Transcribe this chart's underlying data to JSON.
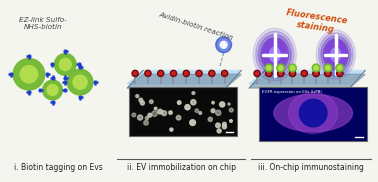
{
  "background_color": "#f5f5f0",
  "panel_labels": [
    "i. Biotin tagging on Evs",
    "ii. EV immobilization on chip",
    "iii. On-chip immunostaining"
  ],
  "panel_title_1": "EZ-link Sulfo-\nNHS-biotin",
  "panel_title_2": "Avidin-biotin reaction",
  "panel_title_3": "Fluorescence\nstaining",
  "label_color": "#222222",
  "title_color_1": "#444444",
  "title_color_2": "#444444",
  "title_color_3": "#d05010",
  "ev_color_outer": "#70b830",
  "ev_color_inner": "#b8e050",
  "biotin_color": "#1a3acc",
  "chip_color_top": "#b8d8f0",
  "chip_color_side": "#7090a8",
  "antibody_stem_color": "#9090a0",
  "antibody_cup_color": "#6b0a0a",
  "antibody_cup_inner": "#cc2020",
  "glow_color_purple": "#5020c0",
  "glow_color_mid": "#8040d8",
  "cross_color": "#ffffff",
  "micro_image_bg": "#0a0a0a",
  "micro_image_dots": "#d0d0c0",
  "micro_image2_bg": "#000060",
  "micro_image2_cell": "#7030b0",
  "micro_image2_glow": "#c050f0",
  "separator_color": "#555555"
}
